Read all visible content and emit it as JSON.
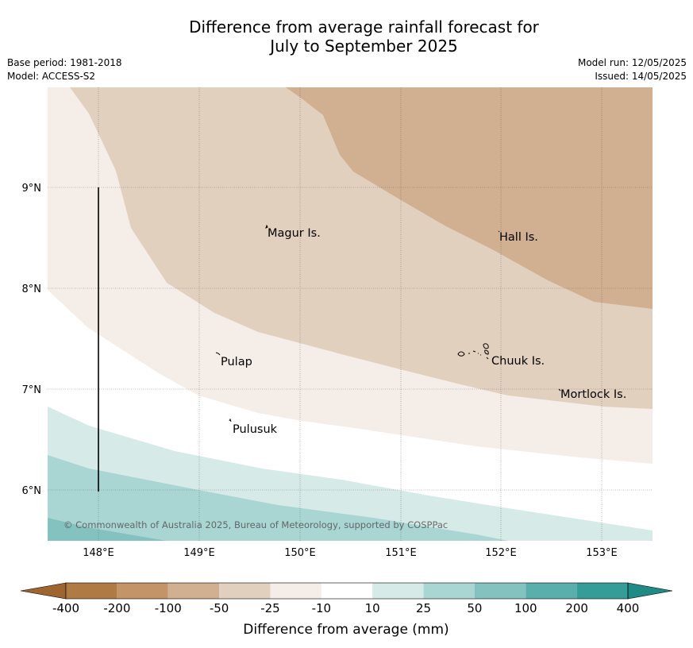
{
  "header": {
    "title_line1": "Difference from average rainfall forecast for",
    "title_line2": "July to September 2025",
    "base_period": "Base period: 1981-2018",
    "model": "Model: ACCESS-S2",
    "model_run": "Model run: 12/05/2025",
    "issued": "Issued: 14/05/2025"
  },
  "map": {
    "lon_range": [
      147.5,
      153.5
    ],
    "lat_range": [
      5.5,
      10.0
    ],
    "lon_ticks": [
      {
        "value": 148,
        "label": "148°E"
      },
      {
        "value": 149,
        "label": "149°E"
      },
      {
        "value": 150,
        "label": "150°E"
      },
      {
        "value": 151,
        "label": "151°E"
      },
      {
        "value": 152,
        "label": "152°E"
      },
      {
        "value": 153,
        "label": "153°E"
      }
    ],
    "lat_ticks": [
      {
        "value": 9,
        "label": "9°N"
      },
      {
        "value": 8,
        "label": "8°N"
      },
      {
        "value": 7,
        "label": "7°N"
      },
      {
        "value": 6,
        "label": "6°N"
      }
    ],
    "grid": true,
    "places": [
      {
        "name": "Magur Is.",
        "lon": 149.7,
        "lat": 8.55
      },
      {
        "name": "Hall Is.",
        "lon": 151.95,
        "lat": 8.5
      },
      {
        "name": "Pulap",
        "lon": 149.2,
        "lat": 7.28
      },
      {
        "name": "Chuuk Is.",
        "lon": 151.9,
        "lat": 7.28
      },
      {
        "name": "Mortlock Is.",
        "lon": 152.6,
        "lat": 6.95
      },
      {
        "name": "Pulusuk",
        "lon": 149.3,
        "lat": 6.62
      }
    ],
    "copyright": "© Commonwealth of Australia 2025, Bureau of Meteorology, supported by COSPPac"
  },
  "colorbar": {
    "labels": [
      "-400",
      "-200",
      "-100",
      "-50",
      "-25",
      "-10",
      "10",
      "25",
      "50",
      "100",
      "200",
      "400"
    ],
    "colors": [
      "#b07a45",
      "#c29467",
      "#d0b091",
      "#e2d0bf",
      "#f5ede8",
      "#ffffff",
      "#d6eae8",
      "#a9d5d3",
      "#84c2bf",
      "#5aaeab",
      "#369c98"
    ],
    "under_color": "#9e6530",
    "over_color": "#1f8a86",
    "label": "Difference from average (mm)"
  },
  "chart_data": {
    "type": "contour-map",
    "units": "mm",
    "levels": [
      -400,
      -200,
      -100,
      -50,
      -25,
      -10,
      10,
      25,
      50,
      100,
      200,
      400
    ],
    "region": {
      "lon": [
        147.5,
        153.5
      ],
      "lat": [
        5.5,
        10.0
      ]
    }
  }
}
